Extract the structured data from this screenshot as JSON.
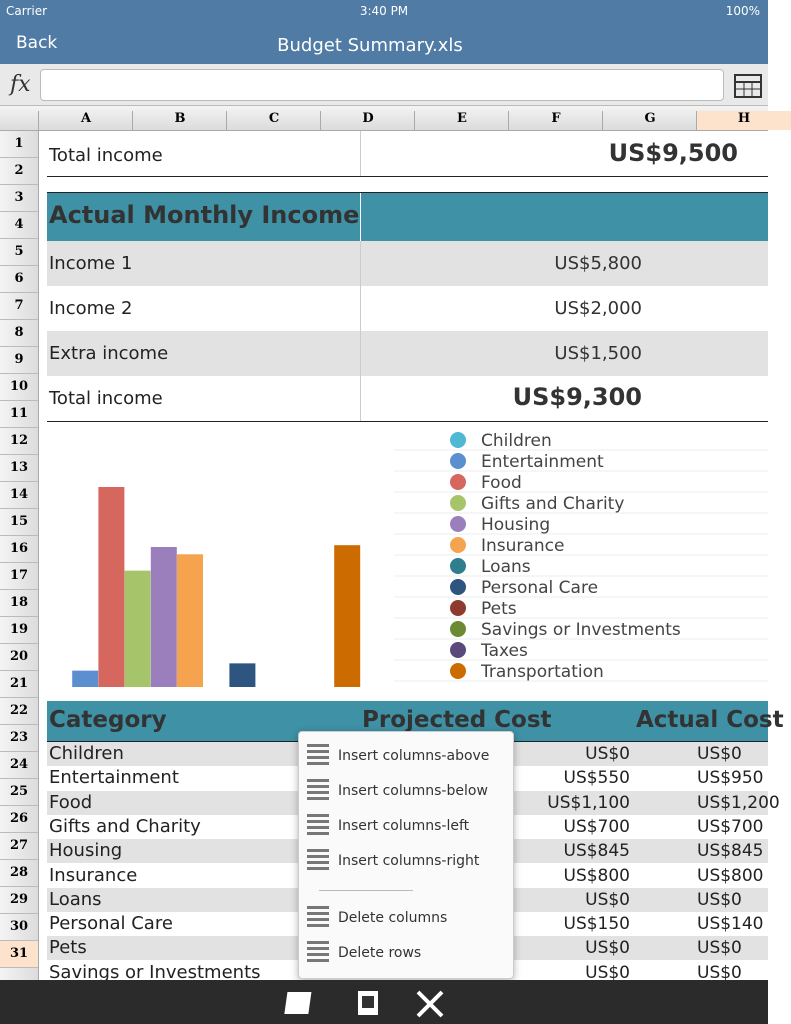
{
  "status": {
    "carrier": "Carrier",
    "time": "3:40 PM",
    "battery": "100%"
  },
  "nav": {
    "back": "Back",
    "title": "Budget Summary.xls"
  },
  "formula": {
    "fx": "fx"
  },
  "columns": [
    "A",
    "B",
    "C",
    "D",
    "E",
    "F",
    "G",
    "H"
  ],
  "rows": [
    1,
    2,
    3,
    4,
    5,
    6,
    7,
    8,
    9,
    10,
    11,
    12,
    13,
    14,
    15,
    16,
    17,
    18,
    19,
    20,
    21,
    22,
    23,
    24,
    25,
    26,
    27,
    28,
    29,
    30,
    31
  ],
  "summary": {
    "label": "Total income",
    "value": "US$9,500"
  },
  "monthly": {
    "title": "Actual Monthly Income",
    "rows": [
      [
        "Income 1",
        "US$5,800"
      ],
      [
        "Income 2",
        "US$2,000"
      ],
      [
        "Extra income",
        "US$1,500"
      ]
    ],
    "total": [
      "Total income",
      "US$9,300"
    ]
  },
  "chart_data": {
    "type": "bar",
    "categories": [
      "Children",
      "Entertainment",
      "Food",
      "Gifts and Charity",
      "Housing",
      "Insurance",
      "Loans",
      "Personal Care",
      "Pets",
      "Savings or Investments",
      "Taxes",
      "Transportation"
    ],
    "values": [
      0,
      90,
      1100,
      640,
      770,
      730,
      0,
      130,
      0,
      0,
      0,
      780
    ],
    "colors": [
      "#4fb8d3",
      "#5b8fd0",
      "#d6675e",
      "#a6c46a",
      "#9b7fbd",
      "#f6a34f",
      "#2e7f8e",
      "#2d5580",
      "#8e3a2f",
      "#6c8a33",
      "#5a4a7c",
      "#cc6c00"
    ]
  },
  "table": {
    "headers": [
      "Category",
      "Projected Cost",
      "Actual Cost"
    ],
    "rows": [
      [
        "Children",
        "US$0",
        "US$0"
      ],
      [
        "Entertainment",
        "US$550",
        "US$950"
      ],
      [
        "Food",
        "US$1,100",
        "US$1,200"
      ],
      [
        "Gifts and Charity",
        "US$700",
        "US$700"
      ],
      [
        "Housing",
        "US$845",
        "US$845"
      ],
      [
        "Insurance",
        "US$800",
        "US$800"
      ],
      [
        "Loans",
        "US$0",
        "US$0"
      ],
      [
        "Personal Care",
        "US$150",
        "US$140"
      ],
      [
        "Pets",
        "US$0",
        "US$0"
      ],
      [
        "Savings or Investments",
        "US$0",
        "US$0"
      ]
    ]
  },
  "menu": {
    "items": [
      "Insert columns-above",
      "Insert columns-below",
      "Insert columns-left",
      "Insert columns-right"
    ],
    "delete": [
      "Delete columns",
      "Delete rows"
    ]
  }
}
